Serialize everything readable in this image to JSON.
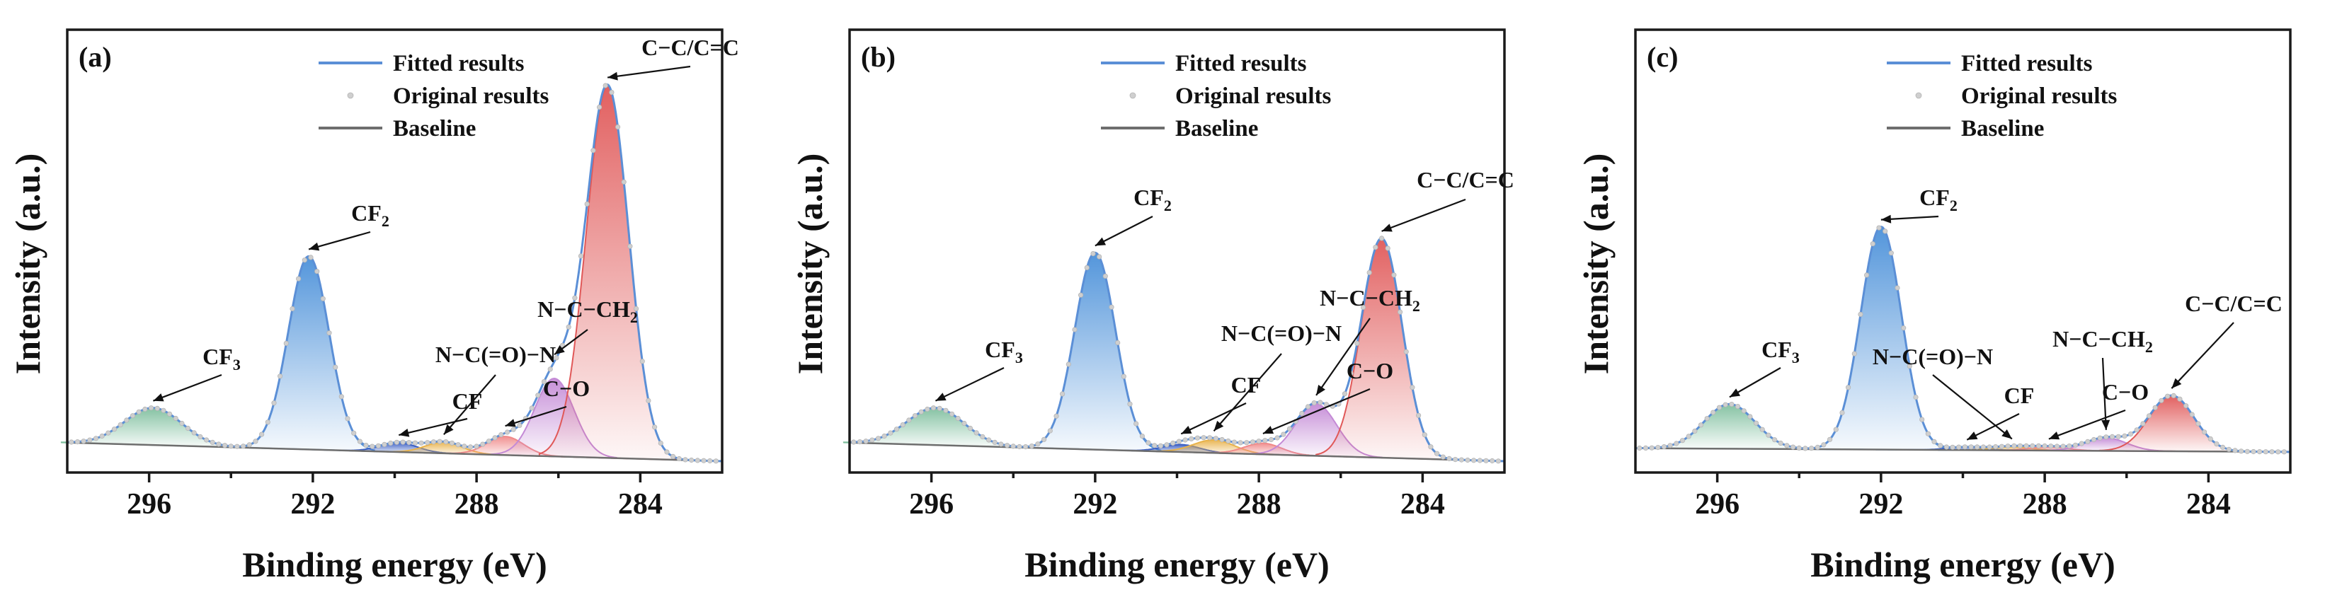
{
  "chart_data": [
    {
      "type": "line",
      "panel": "(a)",
      "xlabel": "Binding energy (eV)",
      "ylabel": "Intensity (a.u.)",
      "xlim": [
        298,
        282
      ],
      "x_ticks": [
        296,
        292,
        288,
        284
      ],
      "ylim": [
        0,
        1.08
      ],
      "legend": [
        "Fitted results",
        "Original results",
        "Baseline"
      ],
      "baseline": [
        [
          298,
          0.05
        ],
        [
          282,
          0.0
        ]
      ],
      "components": [
        {
          "name": "CF3",
          "label": "CF",
          "sub": "3",
          "center": 295.9,
          "height": 0.1,
          "width": 0.7,
          "color": "#7fbf9e"
        },
        {
          "name": "CF2",
          "label": "CF",
          "sub": "2",
          "center": 292.1,
          "height": 0.52,
          "width": 0.5,
          "color": "#4a90d9"
        },
        {
          "name": "CF",
          "label": "CF",
          "sub": "",
          "center": 289.9,
          "height": 0.025,
          "width": 0.45,
          "color": "#3b5fc4"
        },
        {
          "name": "N-C(=O)-N",
          "label": "N−C(=O)−N",
          "sub": "",
          "center": 288.8,
          "height": 0.03,
          "width": 0.45,
          "color": "#e8b24a"
        },
        {
          "name": "C-O",
          "label": "C−O",
          "sub": "",
          "center": 287.3,
          "height": 0.05,
          "width": 0.45,
          "color": "#f08a8a"
        },
        {
          "name": "N-C-CH2",
          "label": "N−C−CH",
          "sub": "2",
          "center": 286.1,
          "height": 0.21,
          "width": 0.48,
          "color": "#c48ad6"
        },
        {
          "name": "C-C/C=C",
          "label": "C−C/C=C",
          "sub": "",
          "center": 284.8,
          "height": 1.0,
          "width": 0.52,
          "color": "#e05858"
        }
      ]
    },
    {
      "type": "line",
      "panel": "(b)",
      "xlabel": "Binding energy (eV)",
      "ylabel": "Intensity (a.u.)",
      "xlim": [
        298,
        282
      ],
      "x_ticks": [
        296,
        292,
        288,
        284
      ],
      "ylim": [
        0,
        1.08
      ],
      "legend": [
        "Fitted results",
        "Original results",
        "Baseline"
      ],
      "baseline": [
        [
          298,
          0.05
        ],
        [
          282,
          0.0
        ]
      ],
      "components": [
        {
          "name": "CF3",
          "label": "CF",
          "sub": "3",
          "center": 295.9,
          "height": 0.1,
          "width": 0.7,
          "color": "#7fbf9e"
        },
        {
          "name": "CF2",
          "label": "CF",
          "sub": "2",
          "center": 292.0,
          "height": 0.53,
          "width": 0.5,
          "color": "#4a90d9"
        },
        {
          "name": "CF",
          "label": "CF",
          "sub": "",
          "center": 289.9,
          "height": 0.02,
          "width": 0.45,
          "color": "#3b5fc4"
        },
        {
          "name": "N-C(=O)-N",
          "label": "N−C(=O)−N",
          "sub": "",
          "center": 289.1,
          "height": 0.035,
          "width": 0.5,
          "color": "#e8b24a"
        },
        {
          "name": "C-O",
          "label": "C−O",
          "sub": "",
          "center": 287.9,
          "height": 0.03,
          "width": 0.45,
          "color": "#f08a8a"
        },
        {
          "name": "N-C-CH2",
          "label": "N−C−CH",
          "sub": "2",
          "center": 286.6,
          "height": 0.14,
          "width": 0.5,
          "color": "#c48ad6"
        },
        {
          "name": "C-C/C=C",
          "label": "C−C/C=C",
          "sub": "",
          "center": 285.0,
          "height": 0.59,
          "width": 0.5,
          "color": "#e05858"
        }
      ]
    },
    {
      "type": "line",
      "panel": "(c)",
      "xlabel": "Binding energy (eV)",
      "ylabel": "Intensity (a.u.)",
      "xlim": [
        298,
        282
      ],
      "x_ticks": [
        296,
        292,
        288,
        284
      ],
      "ylim": [
        0,
        1.08
      ],
      "legend": [
        "Fitted results",
        "Original results",
        "Baseline"
      ],
      "baseline": [
        [
          298,
          0.035
        ],
        [
          282,
          0.025
        ]
      ],
      "components": [
        {
          "name": "CF3",
          "label": "CF",
          "sub": "3",
          "center": 295.7,
          "height": 0.12,
          "width": 0.62,
          "color": "#7fbf9e"
        },
        {
          "name": "CF2",
          "label": "CF",
          "sub": "2",
          "center": 292.0,
          "height": 0.6,
          "width": 0.5,
          "color": "#4a90d9"
        },
        {
          "name": "CF",
          "label": "CF",
          "sub": "",
          "center": 289.9,
          "height": 0.008,
          "width": 0.45,
          "color": "#3b5fc4"
        },
        {
          "name": "N-C(=O)-N",
          "label": "N−C(=O)−N",
          "sub": "",
          "center": 288.8,
          "height": 0.01,
          "width": 0.45,
          "color": "#e8b24a"
        },
        {
          "name": "C-O",
          "label": "C−O",
          "sub": "",
          "center": 287.9,
          "height": 0.01,
          "width": 0.45,
          "color": "#f08a8a"
        },
        {
          "name": "N-C-CH2",
          "label": "N−C−CH",
          "sub": "2",
          "center": 286.5,
          "height": 0.035,
          "width": 0.5,
          "color": "#c48ad6"
        },
        {
          "name": "C-C/C=C",
          "label": "C−C/C=C",
          "sub": "",
          "center": 284.9,
          "height": 0.15,
          "width": 0.55,
          "color": "#e05858"
        }
      ]
    }
  ],
  "colors": {
    "fitted": "#5b8fd6",
    "original": "#c8c8c8",
    "baseline": "#6e6e6e",
    "axis": "#1a1a1a"
  }
}
